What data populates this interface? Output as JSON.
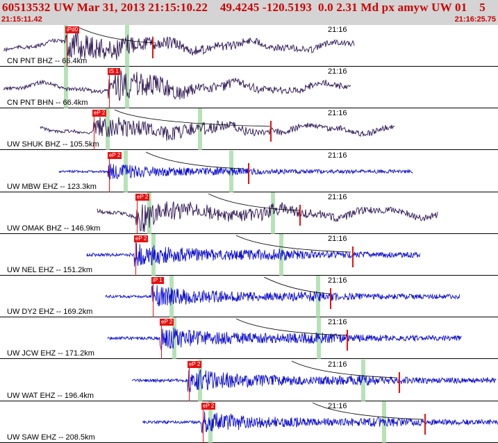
{
  "header": {
    "title": "60513532 UW Mar 31, 2013 21:15:10.22    49.4245 -120.5193  0.0 2.31 Md px amyw UW 01    5",
    "start_time": "21:15:11.42",
    "end_time": "21:16:25.75"
  },
  "colors": {
    "header_bg": "#d4d4d4",
    "header_text": "#cc0000",
    "broadband_trace": "#2a1250",
    "shortperiod_trace": "#1010d0",
    "pick": "#e81010",
    "window_bar": "#9fd89f"
  },
  "traces": [
    {
      "label": "CN PNT BHZ -- 66.4km",
      "pick": "iPd0",
      "time_mark": "21:16",
      "trace_type": "broadband"
    },
    {
      "label": "CN PNT BHN -- 66.4km",
      "pick": "iS 1",
      "time_mark": "21:16",
      "trace_type": "broadband"
    },
    {
      "label": "UW SHUK BHZ -- 105.5km",
      "pick": "eP 2",
      "time_mark": "21:16",
      "trace_type": "broadband"
    },
    {
      "label": "UW MBW EHZ -- 123.3km",
      "pick": "eP 2",
      "time_mark": "21:16",
      "trace_type": "short-period"
    },
    {
      "label": "UW OMAK BHZ -- 146.9km",
      "pick": "eP 2",
      "time_mark": "21:16",
      "trace_type": "broadband"
    },
    {
      "label": "UW NEL EHZ -- 151.2km",
      "pick": "eP 2",
      "time_mark": "21:16",
      "trace_type": "short-period"
    },
    {
      "label": "UW DY2 EHZ -- 169.2km",
      "pick": "iP 1",
      "time_mark": "21:16",
      "trace_type": "short-period"
    },
    {
      "label": "UW JCW EHZ -- 171.2km",
      "pick": "eP 2",
      "time_mark": "21:16",
      "trace_type": "short-period"
    },
    {
      "label": "UW WAT EHZ -- 196.4km",
      "pick": "eP 2",
      "time_mark": "21:16",
      "trace_type": "short-period"
    },
    {
      "label": "UW SAW EHZ -- 208.5km",
      "pick": "eP 2",
      "time_mark": "21:16",
      "trace_type": "short-period"
    }
  ]
}
